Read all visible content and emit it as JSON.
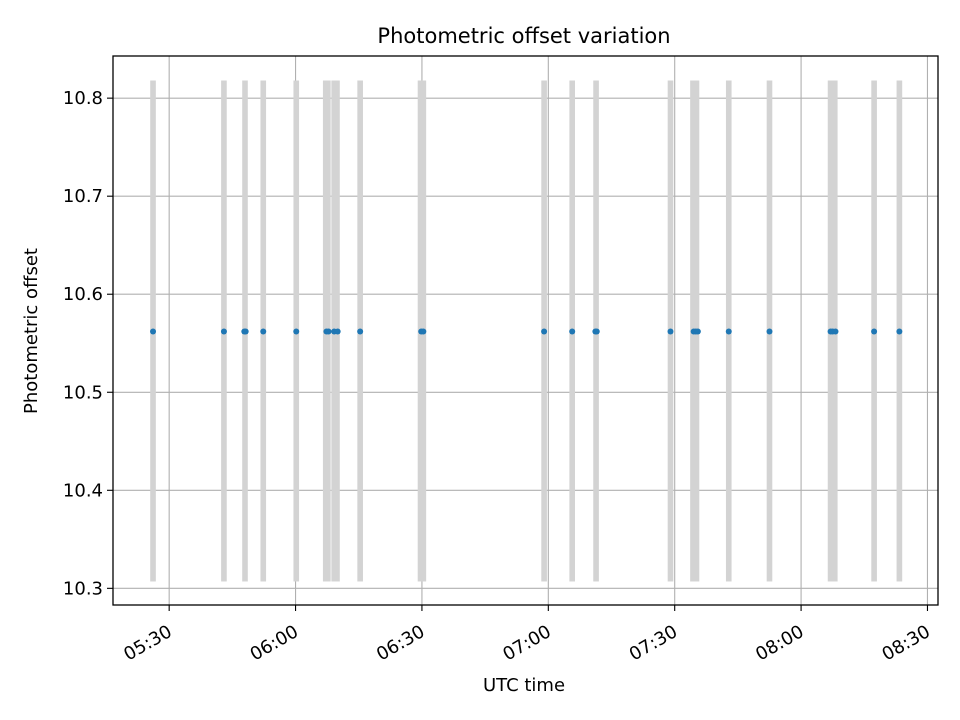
{
  "chart_data": {
    "type": "scatter",
    "title": "Photometric offset variation",
    "xlabel": "UTC time",
    "ylabel": "Photometric offset",
    "xlim": [
      "05:16:40",
      "08:32:30"
    ],
    "ylim": [
      10.283,
      10.843
    ],
    "grid": true,
    "x_ticks": [
      "05:30",
      "06:00",
      "06:30",
      "07:00",
      "07:30",
      "08:00",
      "08:30"
    ],
    "y_ticks": [
      "10.3",
      "10.4",
      "10.5",
      "10.6",
      "10.7",
      "10.8"
    ],
    "series_color": "#1f77b4",
    "band_color": "#d3d3d3",
    "band_range": [
      10.307,
      10.818
    ],
    "bands": [
      {
        "start": "05:25:30",
        "end": "05:26:50"
      },
      {
        "start": "05:42:20",
        "end": "05:43:40"
      },
      {
        "start": "05:47:20",
        "end": "05:48:40"
      },
      {
        "start": "05:51:40",
        "end": "05:53:00"
      },
      {
        "start": "05:59:30",
        "end": "06:00:50"
      },
      {
        "start": "06:06:30",
        "end": "06:08:20"
      },
      {
        "start": "06:08:30",
        "end": "06:10:30"
      },
      {
        "start": "06:14:40",
        "end": "06:16:00"
      },
      {
        "start": "06:29:00",
        "end": "06:31:00"
      },
      {
        "start": "06:58:20",
        "end": "06:59:40"
      },
      {
        "start": "07:05:00",
        "end": "07:06:20"
      },
      {
        "start": "07:10:40",
        "end": "07:12:00"
      },
      {
        "start": "07:28:20",
        "end": "07:29:40"
      },
      {
        "start": "07:33:40",
        "end": "07:35:50"
      },
      {
        "start": "07:42:10",
        "end": "07:43:30"
      },
      {
        "start": "07:51:50",
        "end": "07:53:10"
      },
      {
        "start": "08:06:20",
        "end": "08:08:40"
      },
      {
        "start": "08:16:40",
        "end": "08:18:00"
      },
      {
        "start": "08:22:40",
        "end": "08:24:00"
      }
    ],
    "points": [
      {
        "x": "05:26:10",
        "y": 10.562
      },
      {
        "x": "05:43:00",
        "y": 10.562
      },
      {
        "x": "05:47:50",
        "y": 10.562
      },
      {
        "x": "05:48:10",
        "y": 10.562
      },
      {
        "x": "05:52:20",
        "y": 10.562
      },
      {
        "x": "06:00:10",
        "y": 10.562
      },
      {
        "x": "06:07:20",
        "y": 10.562
      },
      {
        "x": "06:07:50",
        "y": 10.562
      },
      {
        "x": "06:09:10",
        "y": 10.562
      },
      {
        "x": "06:10:00",
        "y": 10.562
      },
      {
        "x": "06:15:20",
        "y": 10.562
      },
      {
        "x": "06:29:50",
        "y": 10.562
      },
      {
        "x": "06:30:20",
        "y": 10.562
      },
      {
        "x": "06:59:00",
        "y": 10.562
      },
      {
        "x": "07:05:40",
        "y": 10.562
      },
      {
        "x": "07:11:10",
        "y": 10.562
      },
      {
        "x": "07:11:30",
        "y": 10.562
      },
      {
        "x": "07:29:00",
        "y": 10.562
      },
      {
        "x": "07:34:30",
        "y": 10.562
      },
      {
        "x": "07:35:00",
        "y": 10.562
      },
      {
        "x": "07:35:30",
        "y": 10.562
      },
      {
        "x": "07:42:50",
        "y": 10.562
      },
      {
        "x": "07:52:30",
        "y": 10.562
      },
      {
        "x": "08:07:00",
        "y": 10.562
      },
      {
        "x": "08:07:30",
        "y": 10.562
      },
      {
        "x": "08:08:10",
        "y": 10.562
      },
      {
        "x": "08:17:20",
        "y": 10.562
      },
      {
        "x": "08:23:20",
        "y": 10.562
      }
    ]
  }
}
